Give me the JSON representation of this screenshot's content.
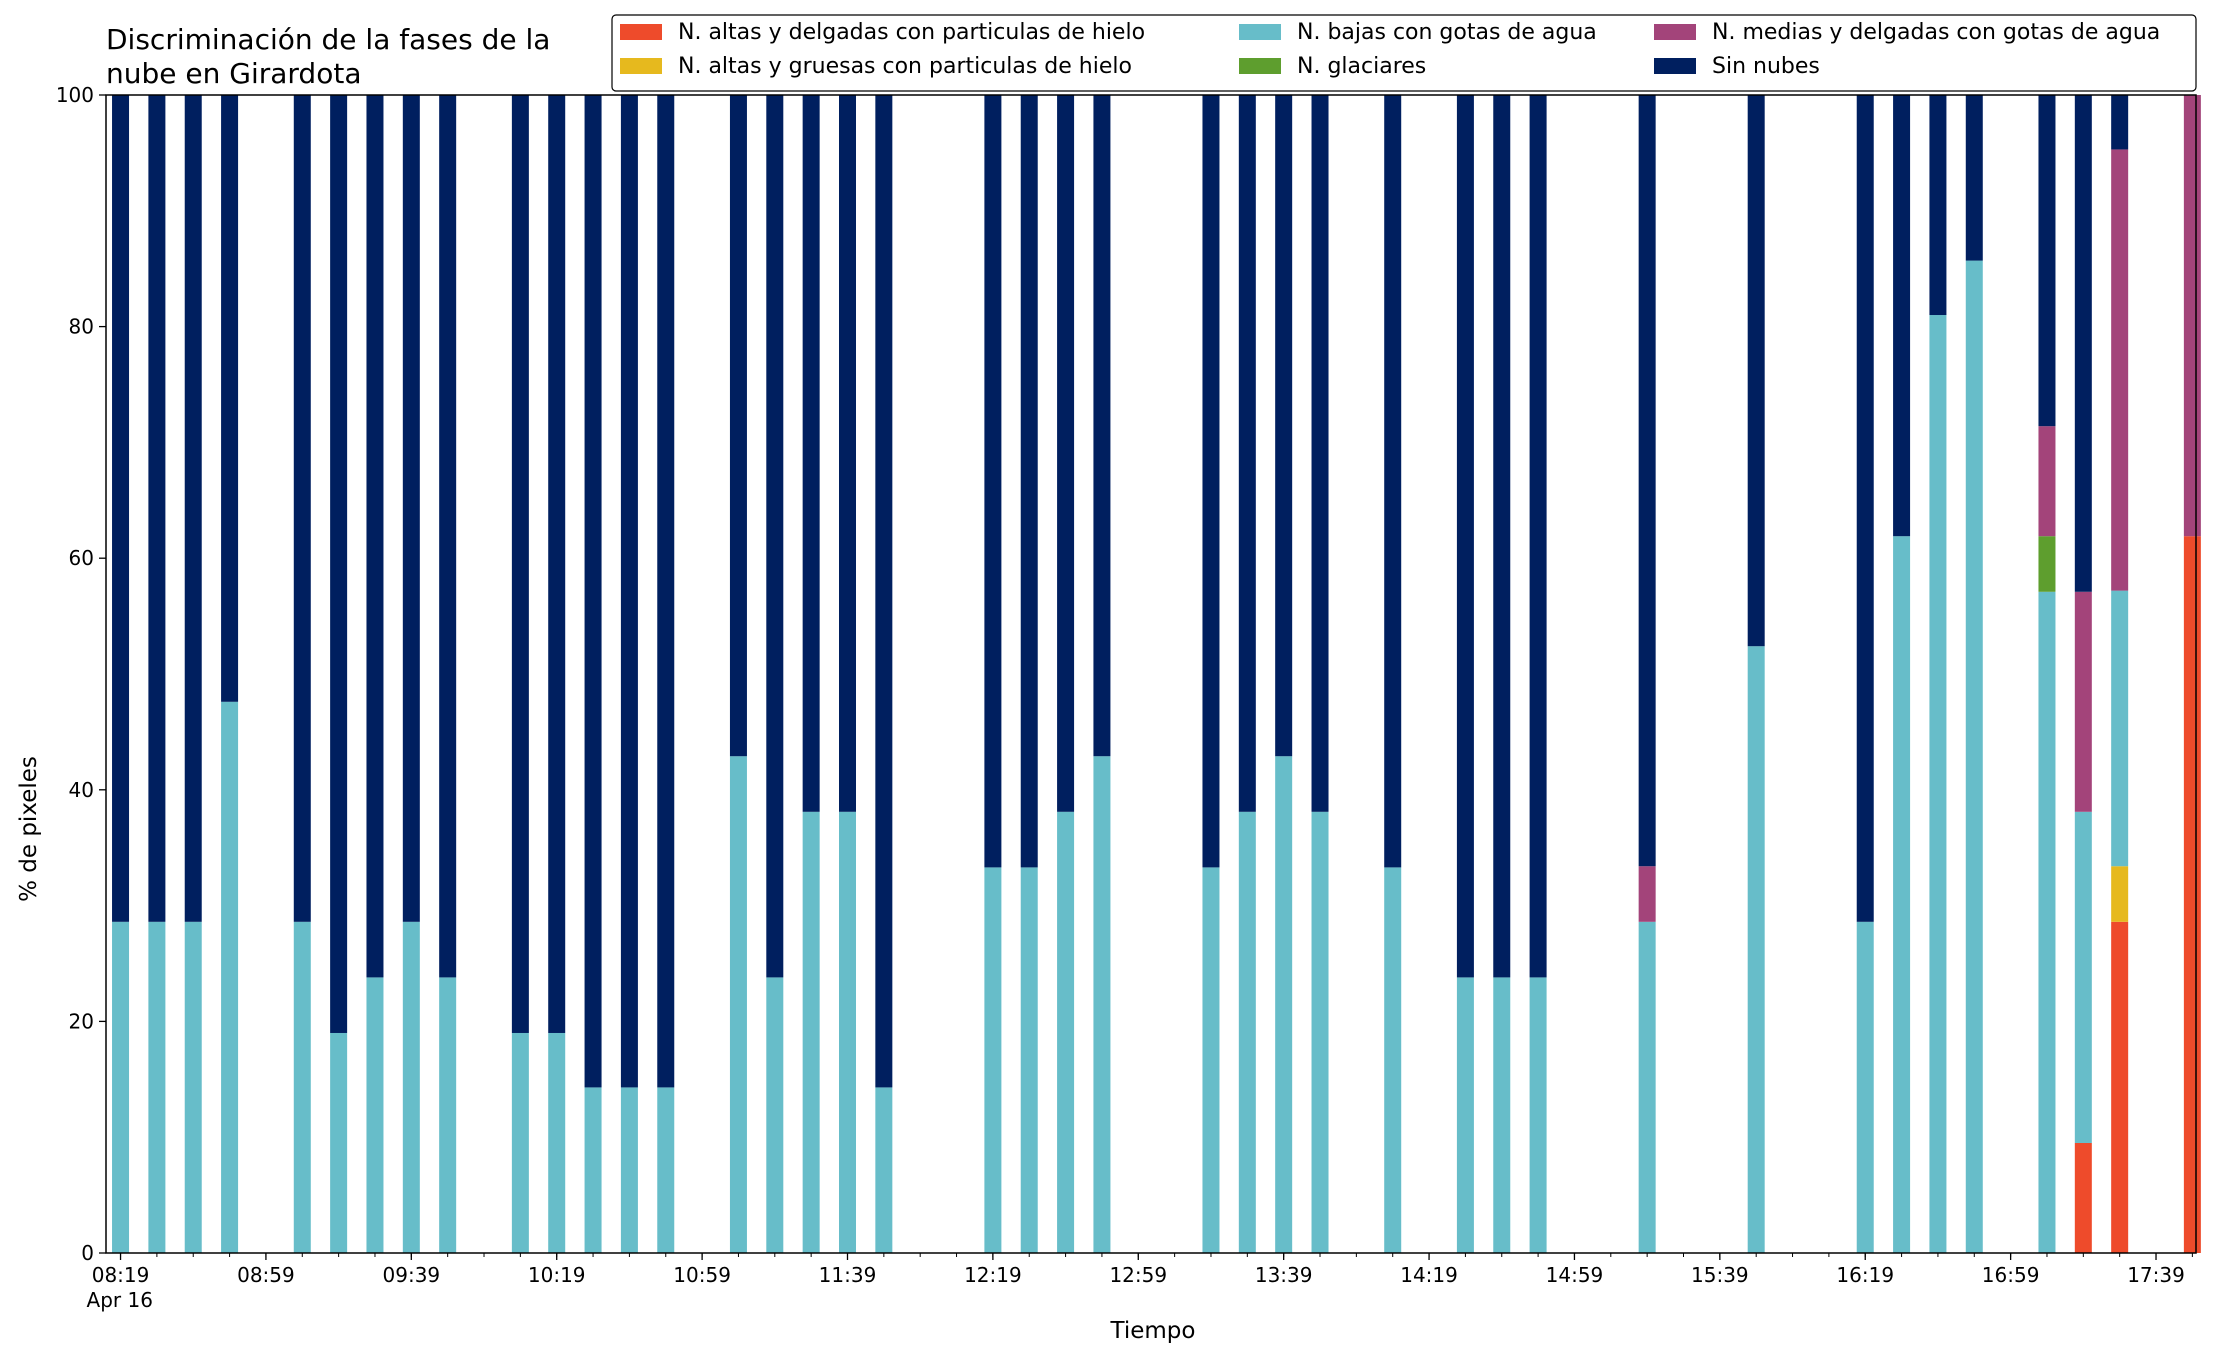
{
  "chart_data": {
    "type": "bar",
    "stacked": true,
    "title_lines": [
      "Discriminación de la fases de la",
      "nube en Girardota"
    ],
    "xlabel": "Tiempo",
    "ylabel": "% de pixeles",
    "ylim": [
      0,
      100
    ],
    "y_ticks": [
      0,
      20,
      40,
      60,
      80,
      100
    ],
    "x_range_minutes": [
      495,
      1070
    ],
    "x_tick_labels": [
      {
        "minute": 499,
        "label": "08:19",
        "sublabel": "Apr 16"
      },
      {
        "minute": 539,
        "label": "08:59"
      },
      {
        "minute": 579,
        "label": "09:39"
      },
      {
        "minute": 619,
        "label": "10:19"
      },
      {
        "minute": 659,
        "label": "10:59"
      },
      {
        "minute": 699,
        "label": "11:39"
      },
      {
        "minute": 739,
        "label": "12:19"
      },
      {
        "minute": 779,
        "label": "12:59"
      },
      {
        "minute": 819,
        "label": "13:39"
      },
      {
        "minute": 859,
        "label": "14:19"
      },
      {
        "minute": 899,
        "label": "14:59"
      },
      {
        "minute": 939,
        "label": "15:39"
      },
      {
        "minute": 979,
        "label": "16:19"
      },
      {
        "minute": 1019,
        "label": "16:59"
      },
      {
        "minute": 1059,
        "label": "17:39"
      }
    ],
    "minor_tick_step_minutes": 10,
    "grid": false,
    "legend_position": "top-right",
    "legend_columns": 3,
    "series": [
      {
        "name": "N. altas y delgadas con particulas de hielo",
        "color": "#EE4B2B"
      },
      {
        "name": "N. altas y gruesas con particulas de hielo",
        "color": "#E6B91E"
      },
      {
        "name": "N. bajas con gotas de agua",
        "color": "#67BDC9"
      },
      {
        "name": "N. glaciares",
        "color": "#5E9E2E"
      },
      {
        "name": "N. medias y delgadas con gotas de agua",
        "color": "#A3447A"
      },
      {
        "name": "Sin nubes",
        "color": "#001F5F"
      }
    ],
    "stack_order": [
      "N. altas y delgadas con particulas de hielo",
      "N. altas y gruesas con particulas de hielo",
      "N. bajas con gotas de agua",
      "N. glaciares",
      "N. medias y delgadas con gotas de agua",
      "Sin nubes"
    ],
    "bars": [
      {
        "time": "08:19",
        "values": [
          0,
          0,
          28.6,
          0,
          0,
          71.4
        ]
      },
      {
        "time": "08:29",
        "values": [
          0,
          0,
          28.6,
          0,
          0,
          71.4
        ]
      },
      {
        "time": "08:39",
        "values": [
          0,
          0,
          28.6,
          0,
          0,
          71.4
        ]
      },
      {
        "time": "08:49",
        "values": [
          0,
          0,
          47.6,
          0,
          0,
          52.4
        ]
      },
      {
        "time": "09:09",
        "values": [
          0,
          0,
          28.6,
          0,
          0,
          71.4
        ]
      },
      {
        "time": "09:19",
        "values": [
          0,
          0,
          19.0,
          0,
          0,
          81.0
        ]
      },
      {
        "time": "09:29",
        "values": [
          0,
          0,
          23.8,
          0,
          0,
          76.2
        ]
      },
      {
        "time": "09:39",
        "values": [
          0,
          0,
          28.6,
          0,
          0,
          71.4
        ]
      },
      {
        "time": "09:49",
        "values": [
          0,
          0,
          23.8,
          0,
          0,
          76.2
        ]
      },
      {
        "time": "10:09",
        "values": [
          0,
          0,
          19.0,
          0,
          0,
          81.0
        ]
      },
      {
        "time": "10:19",
        "values": [
          0,
          0,
          19.0,
          0,
          0,
          81.0
        ]
      },
      {
        "time": "10:29",
        "values": [
          0,
          0,
          14.3,
          0,
          0,
          85.7
        ]
      },
      {
        "time": "10:39",
        "values": [
          0,
          0,
          14.3,
          0,
          0,
          85.7
        ]
      },
      {
        "time": "10:49",
        "values": [
          0,
          0,
          14.3,
          0,
          0,
          85.7
        ]
      },
      {
        "time": "11:09",
        "values": [
          0,
          0,
          42.9,
          0,
          0,
          57.1
        ]
      },
      {
        "time": "11:19",
        "values": [
          0,
          0,
          23.8,
          0,
          0,
          76.2
        ]
      },
      {
        "time": "11:29",
        "values": [
          0,
          0,
          38.1,
          0,
          0,
          61.9
        ]
      },
      {
        "time": "11:39",
        "values": [
          0,
          0,
          38.1,
          0,
          0,
          61.9
        ]
      },
      {
        "time": "11:49",
        "values": [
          0,
          0,
          14.3,
          0,
          0,
          85.7
        ]
      },
      {
        "time": "12:19",
        "values": [
          0,
          0,
          33.3,
          0,
          0,
          66.7
        ]
      },
      {
        "time": "12:29",
        "values": [
          0,
          0,
          33.3,
          0,
          0,
          66.7
        ]
      },
      {
        "time": "12:39",
        "values": [
          0,
          0,
          38.1,
          0,
          0,
          61.9
        ]
      },
      {
        "time": "12:49",
        "values": [
          0,
          0,
          42.9,
          0,
          0,
          57.1
        ]
      },
      {
        "time": "13:19",
        "values": [
          0,
          0,
          33.3,
          0,
          0,
          66.7
        ]
      },
      {
        "time": "13:29",
        "values": [
          0,
          0,
          38.1,
          0,
          0,
          61.9
        ]
      },
      {
        "time": "13:39",
        "values": [
          0,
          0,
          42.9,
          0,
          0,
          57.1
        ]
      },
      {
        "time": "13:49",
        "values": [
          0,
          0,
          38.1,
          0,
          0,
          61.9
        ]
      },
      {
        "time": "14:09",
        "values": [
          0,
          0,
          33.3,
          0,
          0,
          66.7
        ]
      },
      {
        "time": "14:29",
        "values": [
          0,
          0,
          23.8,
          0,
          0,
          76.2
        ]
      },
      {
        "time": "14:39",
        "values": [
          0,
          0,
          23.8,
          0,
          0,
          76.2
        ]
      },
      {
        "time": "14:49",
        "values": [
          0,
          0,
          23.8,
          0,
          0,
          76.2
        ]
      },
      {
        "time": "15:19",
        "values": [
          0,
          0,
          28.6,
          0,
          4.8,
          66.6
        ]
      },
      {
        "time": "15:49",
        "values": [
          0,
          0,
          52.4,
          0,
          0,
          47.6
        ]
      },
      {
        "time": "16:19",
        "values": [
          0,
          0,
          28.6,
          0,
          0,
          71.4
        ]
      },
      {
        "time": "16:29",
        "values": [
          0,
          0,
          61.9,
          0,
          0,
          38.1
        ]
      },
      {
        "time": "16:39",
        "values": [
          0,
          0,
          81.0,
          0,
          0,
          19.0
        ]
      },
      {
        "time": "16:49",
        "values": [
          0,
          0,
          85.7,
          0,
          0,
          14.3
        ]
      },
      {
        "time": "17:09",
        "values": [
          0,
          0,
          57.1,
          4.8,
          9.5,
          28.6
        ]
      },
      {
        "time": "17:19",
        "values": [
          9.5,
          0,
          28.6,
          0,
          19.0,
          42.9
        ]
      },
      {
        "time": "17:29",
        "values": [
          28.6,
          4.8,
          23.8,
          0,
          38.1,
          4.7
        ]
      },
      {
        "time": "17:49",
        "values": [
          61.9,
          0,
          0,
          0,
          38.1,
          0
        ]
      }
    ]
  }
}
